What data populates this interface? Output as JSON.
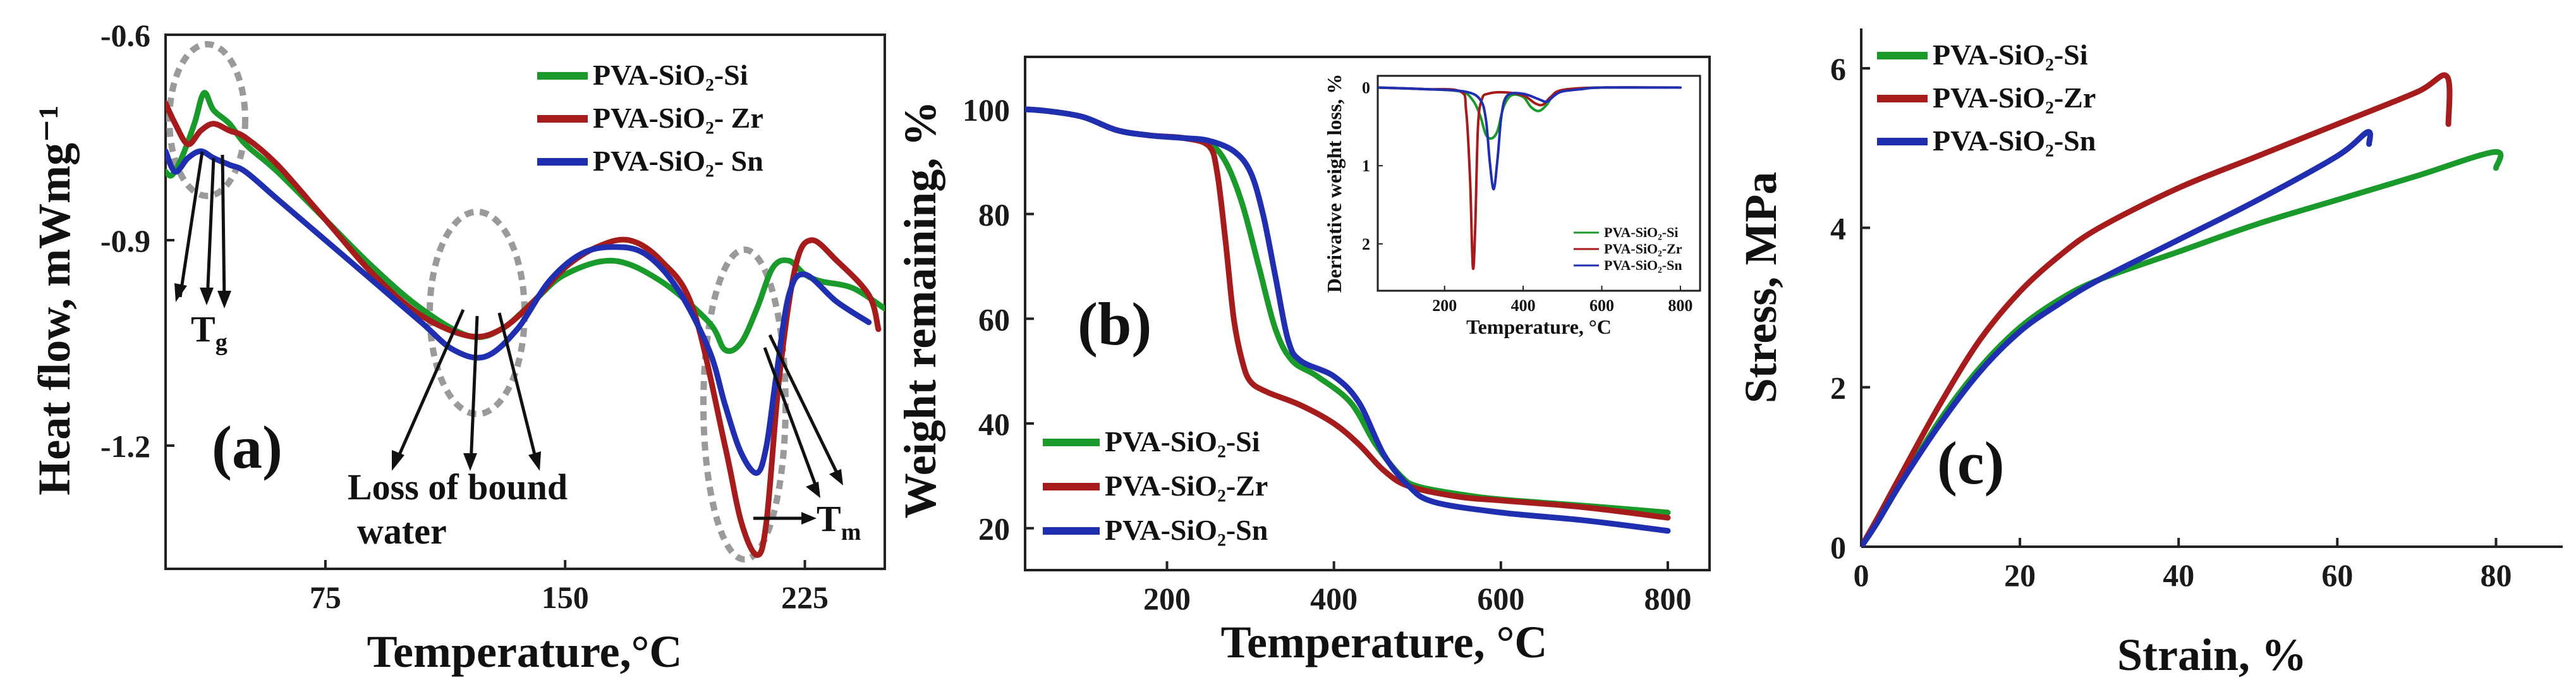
{
  "chart_data": [
    {
      "type": "line",
      "panel_label": "(a)",
      "xlabel": "Temperature,°C",
      "ylabel": "Heat flow, mWmg⁻¹",
      "xlim": [
        25,
        250
      ],
      "ylim": [
        -1.38,
        -0.6
      ],
      "xticks": [
        75,
        150,
        225
      ],
      "yticks": [
        -0.6,
        -0.9,
        -1.2
      ],
      "ytick_labels": [
        "-0.6",
        "-0.9",
        "-1.2"
      ],
      "legend_position": "top-right",
      "annotations": [
        "T",
        "g",
        "Loss of bound",
        "water",
        "T",
        "m"
      ],
      "series": [
        {
          "name": "PVA-SiO₂-Si",
          "color": "#1a9a2a",
          "x": [
            25,
            27,
            30,
            34,
            37,
            40,
            45,
            50,
            60,
            75,
            90,
            105,
            120,
            130,
            140,
            150,
            165,
            180,
            195,
            200,
            205,
            210,
            215,
            220,
            225,
            230,
            240,
            250
          ],
          "y": [
            -0.8,
            -0.805,
            -0.78,
            -0.73,
            -0.685,
            -0.71,
            -0.73,
            -0.76,
            -0.8,
            -0.87,
            -0.94,
            -1.0,
            -1.04,
            -1.03,
            -0.99,
            -0.95,
            -0.93,
            -0.96,
            -1.02,
            -1.06,
            -1.05,
            -1.0,
            -0.94,
            -0.93,
            -0.95,
            -0.96,
            -0.97,
            -1.0
          ]
        },
        {
          "name": "PVA-SiO₂- Zr",
          "color": "#a61c1c",
          "x": [
            25,
            28,
            32,
            36,
            40,
            45,
            50,
            60,
            75,
            90,
            105,
            120,
            130,
            140,
            150,
            160,
            170,
            180,
            190,
            200,
            205,
            210,
            213,
            217,
            222,
            227,
            235,
            245,
            248
          ],
          "y": [
            -0.7,
            -0.73,
            -0.76,
            -0.74,
            -0.73,
            -0.74,
            -0.75,
            -0.79,
            -0.87,
            -0.95,
            -1.01,
            -1.04,
            -1.03,
            -0.99,
            -0.94,
            -0.91,
            -0.9,
            -0.93,
            -1.0,
            -1.2,
            -1.31,
            -1.36,
            -1.31,
            -1.1,
            -0.94,
            -0.9,
            -0.93,
            -0.98,
            -1.03
          ]
        },
        {
          "name": "PVA-SiO₂- Sn",
          "color": "#1f2fb0",
          "x": [
            25,
            28,
            32,
            36,
            40,
            45,
            50,
            60,
            75,
            90,
            105,
            115,
            125,
            135,
            145,
            155,
            165,
            175,
            185,
            195,
            200,
            205,
            210,
            213,
            216,
            220,
            225,
            235,
            245
          ],
          "y": [
            -0.77,
            -0.8,
            -0.78,
            -0.77,
            -0.78,
            -0.79,
            -0.8,
            -0.84,
            -0.9,
            -0.96,
            -1.02,
            -1.06,
            -1.07,
            -1.03,
            -0.96,
            -0.92,
            -0.91,
            -0.92,
            -0.97,
            -1.06,
            -1.14,
            -1.21,
            -1.24,
            -1.2,
            -1.1,
            -0.98,
            -0.95,
            -0.99,
            -1.02
          ]
        }
      ]
    },
    {
      "type": "line",
      "panel_label": "(b)",
      "xlabel": "Temperature, °C",
      "ylabel": "Weight remaining, %",
      "xlim": [
        30,
        850
      ],
      "ylim": [
        12,
        110
      ],
      "xticks": [
        200,
        400,
        600,
        800
      ],
      "yticks": [
        20,
        40,
        60,
        80,
        100
      ],
      "legend_position": "bottom-left",
      "series": [
        {
          "name": "PVA-SiO₂-Si",
          "color": "#1a9a2a",
          "x": [
            30,
            60,
            100,
            140,
            180,
            220,
            250,
            270,
            290,
            310,
            330,
            350,
            380,
            420,
            450,
            480,
            500,
            550,
            600,
            700,
            800
          ],
          "y": [
            100,
            99.6,
            98.5,
            96,
            95,
            94.5,
            93.5,
            90,
            82,
            70,
            58,
            52,
            49,
            44,
            36,
            30,
            28,
            26.5,
            25.5,
            24.3,
            23
          ]
        },
        {
          "name": "PVA-SiO₂-Zr",
          "color": "#a61c1c",
          "x": [
            30,
            60,
            100,
            140,
            180,
            220,
            250,
            260,
            270,
            280,
            290,
            300,
            320,
            360,
            400,
            430,
            460,
            490,
            550,
            600,
            700,
            800
          ],
          "y": [
            100,
            99.6,
            98.5,
            96,
            95,
            94.5,
            93,
            88,
            75,
            60,
            52,
            48,
            46,
            43.5,
            40,
            36,
            31,
            28,
            26,
            25.3,
            24,
            22
          ]
        },
        {
          "name": "PVA-SiO₂-Sn",
          "color": "#1f2fb0",
          "x": [
            30,
            60,
            100,
            140,
            180,
            220,
            250,
            280,
            300,
            315,
            330,
            345,
            360,
            400,
            430,
            460,
            490,
            520,
            600,
            700,
            800
          ],
          "y": [
            100,
            99.6,
            98.5,
            96,
            95,
            94.5,
            94,
            92,
            88,
            80,
            68,
            56,
            52,
            49,
            44,
            34,
            28,
            25,
            23,
            21.5,
            19.5
          ]
        }
      ],
      "inset": {
        "type": "line",
        "xlabel": "Temperature, °C",
        "ylabel": "Derivative weight loss, %",
        "xlim": [
          30,
          850
        ],
        "ylim": [
          -2.6,
          0.15
        ],
        "xticks": [
          200,
          400,
          600,
          800
        ],
        "yticks": [
          0,
          -1,
          -2
        ],
        "ytick_labels": [
          "0",
          "1",
          "2"
        ],
        "legend_position": "bottom-right",
        "series": [
          {
            "name": "PVA-SiO₂-Si",
            "color": "#1a9a2a",
            "x": [
              30,
              150,
              240,
              270,
              290,
              305,
              320,
              335,
              350,
              370,
              400,
              420,
              440,
              460,
              480,
              520,
              600,
              800
            ],
            "y": [
              0,
              -0.02,
              -0.05,
              -0.15,
              -0.35,
              -0.6,
              -0.65,
              -0.55,
              -0.25,
              -0.1,
              -0.12,
              -0.25,
              -0.3,
              -0.22,
              -0.08,
              -0.02,
              0,
              0
            ]
          },
          {
            "name": "PVA-SiO₂-Zr",
            "color": "#a61c1c",
            "x": [
              30,
              150,
              240,
              255,
              265,
              272,
              278,
              285,
              295,
              310,
              350,
              400,
              430,
              450,
              470,
              500,
              600,
              800
            ],
            "y": [
              0,
              -0.02,
              -0.05,
              -0.3,
              -1.2,
              -2.3,
              -1.8,
              -0.5,
              -0.15,
              -0.08,
              -0.06,
              -0.1,
              -0.2,
              -0.22,
              -0.12,
              -0.03,
              0,
              0
            ]
          },
          {
            "name": "PVA-SiO₂-Sn",
            "color": "#1f2fb0",
            "x": [
              30,
              150,
              250,
              290,
              305,
              315,
              325,
              335,
              345,
              360,
              400,
              440,
              460,
              480,
              500,
              550,
              600,
              800
            ],
            "y": [
              0,
              -0.02,
              -0.05,
              -0.15,
              -0.4,
              -0.95,
              -1.3,
              -0.9,
              -0.35,
              -0.1,
              -0.08,
              -0.15,
              -0.18,
              -0.1,
              -0.05,
              -0.02,
              0,
              0
            ]
          }
        ]
      }
    },
    {
      "type": "line",
      "panel_label": "(c)",
      "xlabel": "Strain, %",
      "ylabel": "Stress, MPa",
      "xlim": [
        0,
        90
      ],
      "ylim": [
        0,
        6.5
      ],
      "xticks": [
        0,
        20,
        40,
        60,
        80
      ],
      "yticks": [
        0,
        2,
        4,
        6
      ],
      "legend_position": "top-left",
      "series": [
        {
          "name": "PVA-SiO₂-Si",
          "color": "#1a9a2a",
          "x": [
            0,
            2,
            5,
            10,
            15,
            20,
            25,
            30,
            40,
            50,
            60,
            70,
            79.8,
            80
          ],
          "y": [
            0,
            0.3,
            0.8,
            1.6,
            2.25,
            2.75,
            3.1,
            3.35,
            3.7,
            4.05,
            4.35,
            4.65,
            4.95,
            4.75
          ]
        },
        {
          "name": "PVA-SiO₂-Zr",
          "color": "#a61c1c",
          "x": [
            0,
            2,
            5,
            10,
            15,
            20,
            25,
            30,
            40,
            50,
            60,
            70,
            73.8,
            74
          ],
          "y": [
            0,
            0.35,
            0.9,
            1.8,
            2.6,
            3.2,
            3.65,
            4.0,
            4.5,
            4.9,
            5.3,
            5.7,
            5.9,
            5.3
          ]
        },
        {
          "name": "PVA-SiO₂-Sn",
          "color": "#1f2fb0",
          "x": [
            0,
            2,
            5,
            10,
            15,
            20,
            25,
            30,
            40,
            50,
            60,
            63.8,
            64
          ],
          "y": [
            0,
            0.3,
            0.8,
            1.55,
            2.2,
            2.7,
            3.05,
            3.35,
            3.85,
            4.35,
            4.9,
            5.2,
            5.05
          ]
        }
      ]
    }
  ]
}
